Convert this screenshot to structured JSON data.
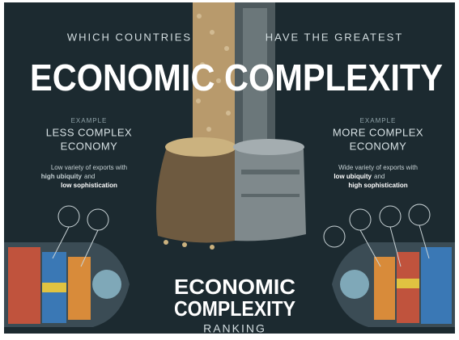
{
  "header": {
    "lead_left": "WHICH COUNTRIES",
    "lead_right": "HAVE THE GREATEST",
    "title": "ECONOMIC COMPLEXITY"
  },
  "left_panel": {
    "label": "EXAMPLE",
    "heading": [
      "LESS COMPLEX",
      "ECONOMY"
    ],
    "description": "Low variety of exports with",
    "highlight_1": "high ubiquity",
    "connector": "and",
    "highlight_2": "low sophistication"
  },
  "right_panel": {
    "label": "EXAMPLE",
    "heading": [
      "MORE COMPLEX",
      "ECONOMY"
    ],
    "description": "Wide variety of exports with",
    "highlight_1": "low ubiquity",
    "connector": "and",
    "highlight_2": "high sophistication"
  },
  "footer": {
    "line_1": "ECONOMIC",
    "line_2": "COMPLEXITY",
    "line_3": "RANKING"
  }
}
